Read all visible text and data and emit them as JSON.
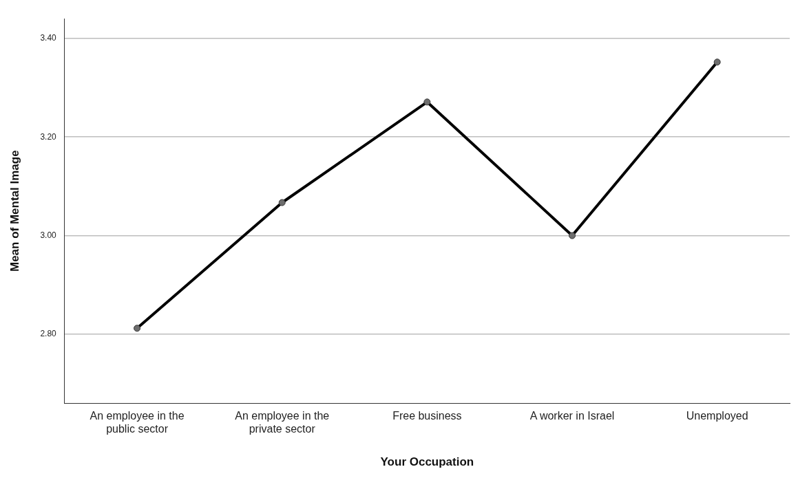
{
  "chart_data": {
    "type": "line",
    "xlabel": "Your Occupation",
    "ylabel": "Mean of Mental Image",
    "categories": [
      "An employee in the public sector",
      "An employee in the private sector",
      "Free business",
      "A worker in Israel",
      "Unemployed"
    ],
    "series": [
      {
        "color": "#000000",
        "values": [
          2.812,
          3.067,
          3.271,
          3.0,
          3.352
        ]
      }
    ],
    "ylim": [
      2.66,
      3.44
    ],
    "yticks": [
      {
        "value": 2.8,
        "label": "2.80"
      },
      {
        "value": 3.0,
        "label": "3.00"
      },
      {
        "value": 3.2,
        "label": "3.20"
      },
      {
        "value": 3.4,
        "label": "3.40"
      }
    ],
    "grid": "y",
    "legend": false,
    "marker": "circle",
    "line_style": "solid"
  }
}
